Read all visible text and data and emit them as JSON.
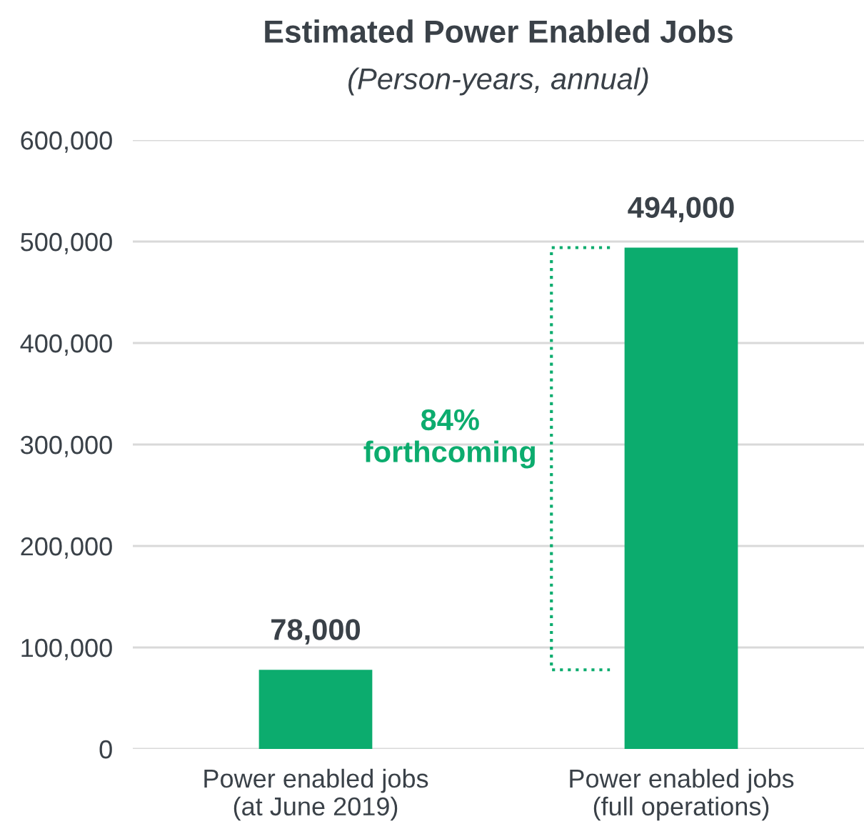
{
  "chart_data": {
    "type": "bar",
    "title": "Estimated Power Enabled Jobs",
    "subtitle": "(Person-years, annual)",
    "categories": [
      "Power enabled jobs\n(at June 2019)",
      "Power enabled jobs\n(full operations)"
    ],
    "values": [
      78000,
      494000
    ],
    "color": "#0cac6e",
    "value_labels": [
      "78,000",
      "494,000"
    ],
    "ylim": [
      0,
      600000
    ],
    "yticks": [
      {
        "value": 0,
        "label": "0"
      },
      {
        "value": 100000,
        "label": "100,000"
      },
      {
        "value": 200000,
        "label": "200,000"
      },
      {
        "value": 300000,
        "label": "300,000"
      },
      {
        "value": 400000,
        "label": "400,000"
      },
      {
        "value": 500000,
        "label": "500,000"
      },
      {
        "value": 600000,
        "label": "600,000"
      }
    ],
    "grid": "y",
    "annotations": [
      "84%\nforthcoming"
    ]
  }
}
